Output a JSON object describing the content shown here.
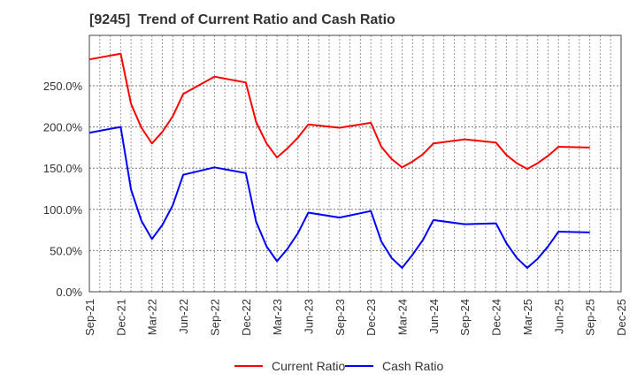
{
  "chart_data": {
    "type": "line",
    "title": "[9245]  Trend of Current Ratio and Cash Ratio",
    "xlabel": "",
    "ylabel": "",
    "ylim": [
      0,
      295
    ],
    "xlim": [
      "Sep-21",
      "Dec-25"
    ],
    "grid": true,
    "legend_position": "bottom",
    "y_ticks": [
      "0.0%",
      "50.0%",
      "100.0%",
      "150.0%",
      "200.0%",
      "250.0%"
    ],
    "y_tick_values": [
      0,
      50,
      100,
      150,
      200,
      250
    ],
    "x_ticks": [
      "Sep-21",
      "Dec-21",
      "Mar-22",
      "Jun-22",
      "Sep-22",
      "Dec-22",
      "Mar-23",
      "Jun-23",
      "Sep-23",
      "Dec-23",
      "Mar-24",
      "Jun-24",
      "Sep-24",
      "Dec-24",
      "Mar-25",
      "Jun-25",
      "Sep-25",
      "Dec-25"
    ],
    "x_month_index": [
      0,
      3,
      4,
      5,
      6,
      7,
      8,
      9,
      12,
      15,
      16,
      17,
      18,
      19,
      20,
      21,
      24,
      27,
      28,
      29,
      30,
      31,
      32,
      33,
      36,
      39,
      40,
      41,
      42,
      43,
      44,
      45,
      48
    ],
    "x": [
      "Sep-21",
      "Dec-21",
      "Jan-22",
      "Feb-22",
      "Mar-22",
      "Apr-22",
      "May-22",
      "Jun-22",
      "Sep-22",
      "Dec-22",
      "Jan-23",
      "Feb-23",
      "Mar-23",
      "Apr-23",
      "May-23",
      "Jun-23",
      "Sep-23",
      "Dec-23",
      "Jan-24",
      "Feb-24",
      "Mar-24",
      "Apr-24",
      "May-24",
      "Jun-24",
      "Sep-24",
      "Dec-24",
      "Jan-25",
      "Feb-25",
      "Mar-25",
      "Apr-25",
      "May-25",
      "Jun-25",
      "Sep-25"
    ],
    "series": [
      {
        "name": "Current Ratio",
        "color": "#ff0000",
        "values": [
          282,
          289,
          228,
          199,
          180,
          194,
          213,
          240,
          261,
          254,
          206,
          180,
          163,
          174,
          187,
          203,
          199,
          205,
          176,
          161,
          151,
          158,
          167,
          180,
          185,
          181,
          166,
          156,
          149,
          156,
          165,
          176,
          175
        ]
      },
      {
        "name": "Cash Ratio",
        "color": "#0000ff",
        "values": [
          193,
          200,
          124,
          86,
          64,
          81,
          105,
          142,
          151,
          144,
          85,
          55,
          37,
          52,
          71,
          96,
          90,
          98,
          61,
          41,
          29,
          45,
          63,
          87,
          82,
          83,
          59,
          41,
          29,
          40,
          55,
          73,
          72
        ]
      }
    ]
  },
  "legend": {
    "items": [
      {
        "label": "Current Ratio",
        "color": "#ff0000"
      },
      {
        "label": "Cash Ratio",
        "color": "#0000ff"
      }
    ]
  }
}
